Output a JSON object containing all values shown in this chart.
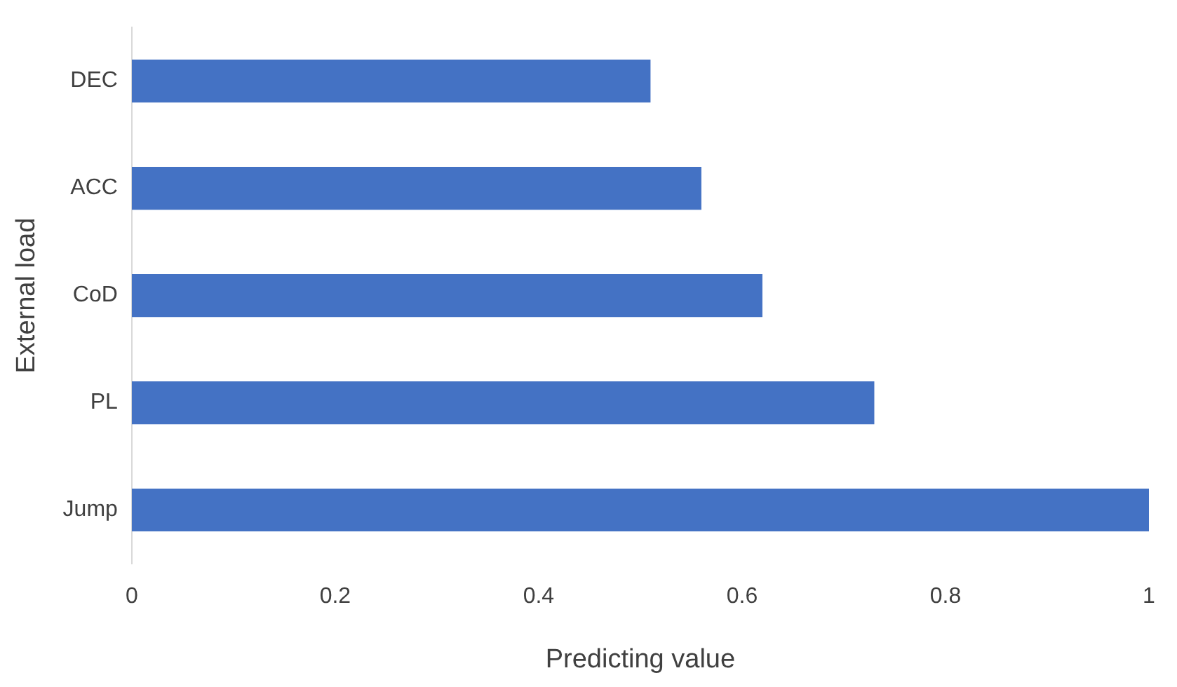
{
  "chart_data": {
    "type": "bar",
    "orientation": "horizontal",
    "xlabel": "Predicting value",
    "ylabel": "External load",
    "categories": [
      "DEC",
      "ACC",
      "CoD",
      "PL",
      "Jump"
    ],
    "values": [
      0.51,
      0.56,
      0.62,
      0.73,
      1.0
    ],
    "color": "#4472c4",
    "xlim": [
      0,
      1
    ],
    "xticks": [
      0,
      0.2,
      0.4,
      0.6,
      0.8,
      1
    ],
    "grid": false,
    "legend": false
  }
}
